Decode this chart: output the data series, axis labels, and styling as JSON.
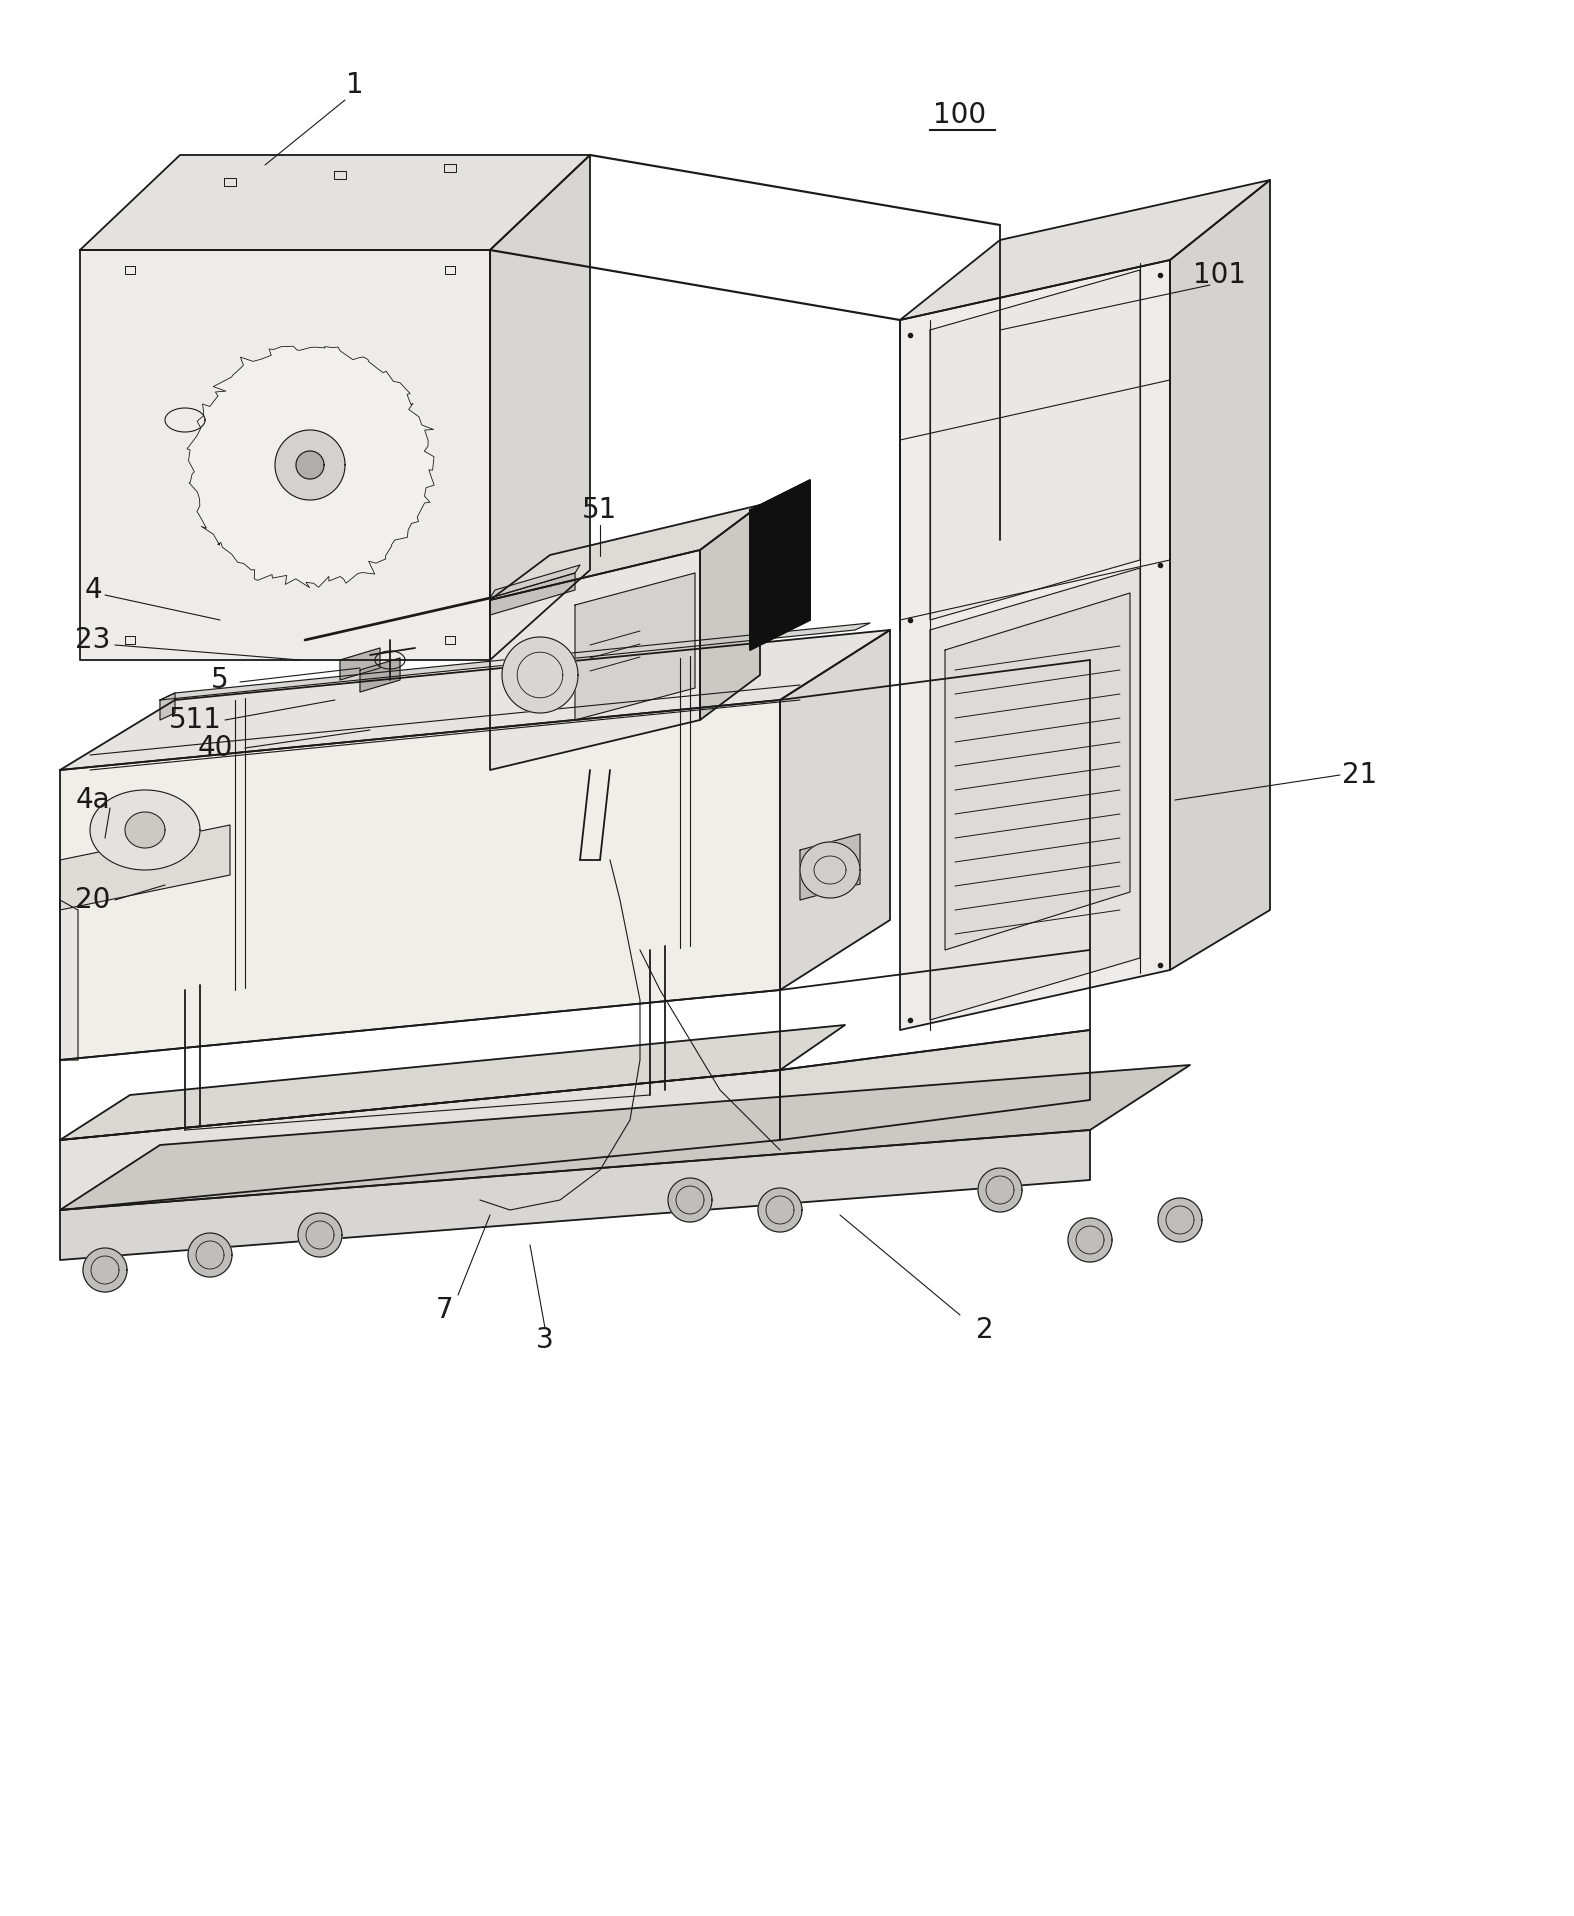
{
  "figsize": [
    15.74,
    19.16
  ],
  "dpi": 100,
  "bg_color": "#ffffff",
  "lc": "#1a1a1a",
  "lw": 1.3,
  "lw_thin": 0.8,
  "lw_thick": 2.0,
  "fill_light": "#f0eeea",
  "fill_mid": "#e0deda",
  "fill_dark": "#c8c6c0",
  "fill_white": "#f8f8f6",
  "label_fontsize": 20
}
